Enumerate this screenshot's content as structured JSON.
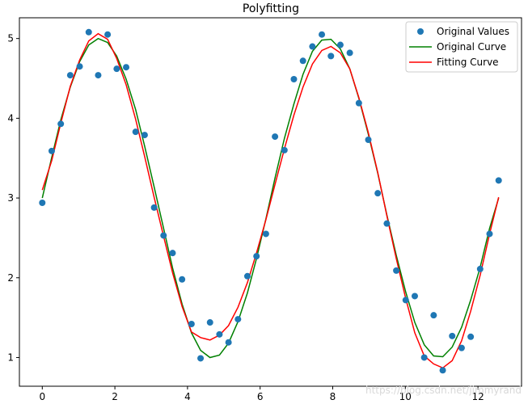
{
  "chart_data": {
    "type": "line",
    "title": "Polyfitting",
    "xlabel": "",
    "ylabel": "",
    "xlim": [
      -0.63,
      13.2
    ],
    "ylim": [
      0.64,
      5.26
    ],
    "xticks": [
      0,
      2,
      4,
      6,
      8,
      10,
      12
    ],
    "yticks": [
      1,
      2,
      3,
      4,
      5
    ],
    "grid": false,
    "legend_position": "top-right",
    "watermark": "https://blog.csdn.net/jimmyrand",
    "series": [
      {
        "name": "Original Values",
        "kind": "scatter",
        "color": "#1f77b4",
        "x": [
          0,
          0.26,
          0.51,
          0.77,
          1.03,
          1.28,
          1.54,
          1.8,
          2.05,
          2.31,
          2.57,
          2.82,
          3.08,
          3.34,
          3.59,
          3.85,
          4.11,
          4.36,
          4.62,
          4.88,
          5.13,
          5.39,
          5.65,
          5.9,
          6.16,
          6.41,
          6.67,
          6.93,
          7.18,
          7.44,
          7.7,
          7.95,
          8.21,
          8.47,
          8.72,
          8.98,
          9.24,
          9.49,
          9.75,
          10.01,
          10.26,
          10.52,
          10.78,
          11.03,
          11.29,
          11.55,
          11.8,
          12.06,
          12.32,
          12.57
        ],
        "y": [
          2.94,
          3.59,
          3.93,
          4.54,
          4.65,
          5.08,
          4.54,
          5.05,
          4.62,
          4.64,
          3.83,
          3.79,
          2.88,
          2.53,
          2.31,
          1.98,
          1.42,
          0.99,
          1.44,
          1.29,
          1.19,
          1.48,
          2.02,
          2.27,
          2.55,
          3.77,
          3.6,
          4.49,
          4.72,
          4.9,
          5.05,
          4.78,
          4.92,
          4.82,
          4.19,
          3.73,
          3.06,
          2.68,
          2.09,
          1.72,
          1.77,
          1.0,
          1.53,
          0.84,
          1.27,
          1.12,
          1.26,
          2.11,
          2.55,
          3.22
        ]
      },
      {
        "name": "Original Curve",
        "kind": "line",
        "color": "#008000",
        "x": [
          0,
          0.26,
          0.51,
          0.77,
          1.03,
          1.28,
          1.54,
          1.8,
          2.05,
          2.31,
          2.57,
          2.82,
          3.08,
          3.34,
          3.59,
          3.85,
          4.11,
          4.36,
          4.62,
          4.88,
          5.13,
          5.39,
          5.65,
          5.9,
          6.16,
          6.41,
          6.67,
          6.93,
          7.18,
          7.44,
          7.7,
          7.95,
          8.21,
          8.47,
          8.72,
          8.98,
          9.24,
          9.49,
          9.75,
          10.01,
          10.26,
          10.52,
          10.78,
          11.03,
          11.29,
          11.55,
          11.8,
          12.06,
          12.32,
          12.57
        ],
        "y": [
          3.0,
          3.51,
          3.98,
          4.39,
          4.71,
          4.92,
          5.0,
          4.95,
          4.78,
          4.49,
          4.11,
          3.65,
          3.14,
          2.62,
          2.12,
          1.67,
          1.31,
          1.09,
          1.0,
          1.03,
          1.18,
          1.45,
          1.81,
          2.24,
          2.74,
          3.25,
          3.75,
          4.18,
          4.55,
          4.84,
          4.98,
          4.99,
          4.87,
          4.62,
          4.25,
          3.8,
          3.31,
          2.79,
          2.28,
          1.82,
          1.44,
          1.16,
          1.02,
          1.01,
          1.13,
          1.38,
          1.72,
          2.13,
          2.62,
          3.0
        ]
      },
      {
        "name": "Fitting Curve",
        "kind": "line",
        "color": "#ff0000",
        "x": [
          0,
          0.26,
          0.51,
          0.77,
          1.03,
          1.28,
          1.54,
          1.8,
          2.05,
          2.31,
          2.57,
          2.82,
          3.08,
          3.34,
          3.59,
          3.85,
          4.11,
          4.36,
          4.62,
          4.88,
          5.13,
          5.39,
          5.65,
          5.9,
          6.16,
          6.41,
          6.67,
          6.93,
          7.18,
          7.44,
          7.7,
          7.95,
          8.21,
          8.47,
          8.72,
          8.98,
          9.24,
          9.49,
          9.75,
          10.01,
          10.26,
          10.52,
          10.78,
          11.03,
          11.29,
          11.55,
          11.8,
          12.06,
          12.32,
          12.57
        ],
        "y": [
          3.1,
          3.47,
          3.94,
          4.4,
          4.73,
          4.97,
          5.06,
          4.99,
          4.75,
          4.42,
          3.99,
          3.52,
          3.01,
          2.52,
          2.06,
          1.64,
          1.32,
          1.25,
          1.22,
          1.28,
          1.4,
          1.63,
          1.94,
          2.31,
          2.73,
          3.17,
          3.62,
          4.04,
          4.39,
          4.68,
          4.85,
          4.9,
          4.82,
          4.62,
          4.26,
          3.82,
          3.32,
          2.78,
          2.24,
          1.74,
          1.31,
          1.02,
          0.92,
          0.87,
          0.96,
          1.21,
          1.58,
          2.03,
          2.55,
          3.01
        ]
      }
    ]
  }
}
